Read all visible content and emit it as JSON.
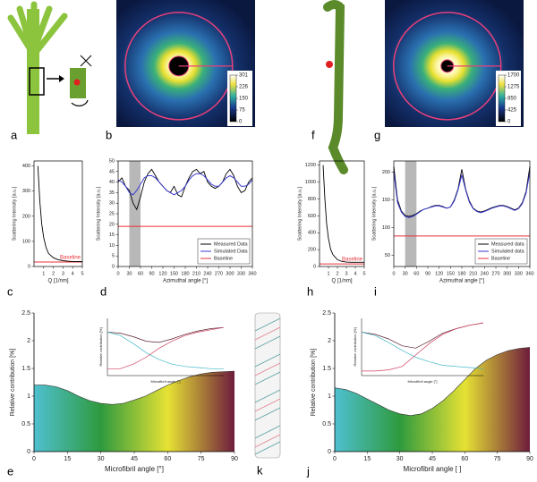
{
  "illustrations": [
    {
      "panel": "a"
    },
    {
      "panel": "f"
    },
    {
      "panel": "k"
    }
  ],
  "images": [
    {
      "panel": "b",
      "colorbar_lim": [
        0,
        301
      ],
      "colorbar_ticks": [
        0,
        75,
        150,
        226,
        301
      ]
    },
    {
      "panel": "g",
      "colorbar_lim": [
        0,
        1700
      ],
      "colorbar_ticks": [
        0,
        425,
        850,
        1275,
        1700
      ]
    }
  ],
  "chart_data": [
    {
      "type": "line",
      "panel": "c",
      "ylabel": "Scattering Intensity [a.u.]",
      "xlabel": "Q [1/nm]",
      "x": [
        0.4,
        0.6,
        0.8,
        1,
        1.25,
        1.5,
        2,
        2.5,
        3,
        3.5,
        4,
        4.5,
        5
      ],
      "series": [
        {
          "color": "#000000",
          "values": [
            400,
            260,
            170,
            115,
            75,
            52,
            35,
            27,
            23,
            21,
            20,
            20,
            20
          ]
        }
      ],
      "baseline": {
        "name": "Baseline",
        "value": 18,
        "color": "#e8303a"
      },
      "xlim": [
        0,
        5
      ],
      "xticks": [
        1,
        2,
        3,
        4,
        5
      ],
      "ylim": [
        0,
        420
      ],
      "yticks": [
        0,
        100,
        200,
        300,
        400
      ]
    },
    {
      "type": "line",
      "panel": "d",
      "ylabel": "Scattering Intensity [a.u.]",
      "xlabel": "Azimuthal angle [°]",
      "x": [
        0,
        10,
        20,
        30,
        40,
        50,
        60,
        70,
        80,
        90,
        100,
        110,
        120,
        130,
        140,
        150,
        160,
        170,
        180,
        190,
        200,
        210,
        220,
        230,
        240,
        250,
        260,
        270,
        280,
        290,
        300,
        310,
        320,
        330,
        340,
        350,
        360
      ],
      "series": [
        {
          "name": "Measured Data",
          "color": "#000000",
          "values": [
            40,
            42,
            38,
            36,
            30,
            27,
            33,
            40,
            44,
            46,
            43,
            40,
            38,
            36,
            35,
            38,
            34,
            33,
            38,
            42,
            45,
            46,
            44,
            45,
            40,
            38,
            37,
            38,
            40,
            44,
            46,
            43,
            38,
            35,
            36,
            40,
            42
          ]
        },
        {
          "name": "Simulated Data",
          "color": "#3a3ad0",
          "values": [
            41,
            40,
            38,
            35,
            34,
            36,
            39,
            42,
            43,
            43,
            42,
            40,
            38,
            36,
            35,
            34,
            35,
            36,
            38,
            41,
            43,
            44,
            44,
            43,
            41,
            39,
            38,
            38,
            40,
            42,
            43,
            42,
            40,
            38,
            38,
            39,
            41
          ]
        }
      ],
      "baseline": {
        "name": "Baseline",
        "value": 19,
        "color": "#e8303a"
      },
      "shade": [
        30,
        60
      ],
      "legend": "lower right",
      "xlim": [
        0,
        360
      ],
      "xticks": [
        0,
        30,
        60,
        90,
        120,
        150,
        180,
        210,
        240,
        270,
        300,
        330,
        360
      ],
      "ylim": [
        0,
        50
      ],
      "yticks": [
        0,
        5,
        10,
        15,
        20,
        25,
        30,
        35,
        40,
        45,
        50
      ]
    },
    {
      "type": "line",
      "panel": "h",
      "ylabel": "Scattering Intensity [a.u.]",
      "xlabel": "Q [1/nm]",
      "x": [
        0.4,
        0.6,
        0.8,
        1,
        1.25,
        1.5,
        2,
        2.5,
        3,
        3.5,
        4,
        4.5,
        5
      ],
      "series": [
        {
          "color": "#000000",
          "values": [
            1200,
            800,
            500,
            330,
            200,
            140,
            80,
            60,
            52,
            50,
            50,
            50,
            50
          ]
        }
      ],
      "baseline": {
        "name": "Baseline",
        "value": 30,
        "color": "#e8303a"
      },
      "xlim": [
        0,
        5
      ],
      "xticks": [
        1,
        2,
        3,
        4,
        5
      ],
      "ylim": [
        0,
        1250
      ],
      "yticks": [
        0,
        200,
        400,
        600,
        800,
        1000,
        1200
      ]
    },
    {
      "type": "line",
      "panel": "i",
      "ylabel": "Scattering Intensity [a.u.]",
      "xlabel": "Azimuthal angle [°]",
      "x": [
        0,
        10,
        20,
        30,
        40,
        50,
        60,
        70,
        80,
        90,
        100,
        110,
        120,
        130,
        140,
        150,
        160,
        170,
        180,
        190,
        200,
        210,
        220,
        230,
        240,
        250,
        260,
        270,
        280,
        290,
        300,
        310,
        320,
        330,
        340,
        350,
        360
      ],
      "series": [
        {
          "name": "Measured data",
          "color": "#000000",
          "values": [
            210,
            150,
            130,
            122,
            120,
            122,
            125,
            130,
            133,
            135,
            138,
            140,
            140,
            138,
            135,
            137,
            150,
            170,
            205,
            170,
            148,
            135,
            130,
            128,
            130,
            133,
            136,
            138,
            140,
            140,
            138,
            135,
            132,
            135,
            145,
            165,
            210
          ]
        },
        {
          "name": "Simulated data",
          "color": "#3a3ad0",
          "values": [
            200,
            145,
            128,
            120,
            118,
            120,
            124,
            129,
            133,
            135,
            137,
            139,
            139,
            137,
            135,
            137,
            148,
            168,
            195,
            168,
            146,
            134,
            129,
            127,
            129,
            132,
            135,
            137,
            139,
            139,
            137,
            134,
            131,
            134,
            143,
            162,
            200
          ]
        }
      ],
      "baseline": {
        "name": "Baseline",
        "value": 85,
        "color": "#e8303a"
      },
      "shade": [
        30,
        60
      ],
      "legend": "lower right",
      "xlim": [
        0,
        360
      ],
      "xticks": [
        0,
        30,
        60,
        90,
        120,
        150,
        180,
        210,
        240,
        270,
        300,
        330,
        360
      ],
      "ylim": [
        30,
        220
      ],
      "yticks": [
        50,
        100,
        150,
        200
      ]
    },
    {
      "type": "area",
      "panel": "e",
      "ylabel": "Relative contribution [%]",
      "xlabel": "Microfibril angle [°]",
      "x": [
        0,
        5,
        10,
        15,
        20,
        25,
        30,
        35,
        40,
        45,
        50,
        55,
        60,
        65,
        70,
        75,
        80,
        85,
        90
      ],
      "values": [
        1.2,
        1.2,
        1.17,
        1.1,
        1.0,
        0.92,
        0.87,
        0.85,
        0.87,
        0.93,
        1.0,
        1.1,
        1.2,
        1.28,
        1.35,
        1.4,
        1.43,
        1.44,
        1.45
      ],
      "fill_colors": [
        "#4fc0d0",
        "#2e9a3e",
        "#e6e234",
        "#6e1c3c"
      ],
      "xlim": [
        0,
        90
      ],
      "xticks": [
        0,
        15,
        30,
        45,
        60,
        75,
        90
      ],
      "ylim": [
        0,
        2.5
      ],
      "yticks": [
        0,
        0.5,
        1,
        1.5,
        2,
        2.5
      ],
      "inset": {
        "ylabel": "Relative contribution [%]",
        "xlabel": "Microfibril angle [°]",
        "xlim": [
          0,
          90
        ],
        "ylim": [
          0,
          2.5
        ],
        "x": [
          0,
          10,
          20,
          30,
          40,
          50,
          60,
          70,
          80,
          90
        ],
        "series": [
          {
            "color": "#5a2030",
            "values": [
              1.9,
              1.85,
              1.7,
              1.5,
              1.45,
              1.6,
              1.8,
              1.95,
              2.05,
              2.1
            ]
          },
          {
            "color": "#40b8c8",
            "values": [
              1.9,
              1.75,
              1.4,
              1.0,
              0.7,
              0.5,
              0.4,
              0.35,
              0.3,
              0.3
            ]
          },
          {
            "color": "#d04060",
            "values": [
              0.3,
              0.3,
              0.5,
              0.8,
              1.2,
              1.5,
              1.75,
              1.9,
              2.0,
              2.1
            ]
          }
        ]
      }
    },
    {
      "type": "area",
      "panel": "j",
      "ylabel": "Relative contribution [%]",
      "xlabel": "Microfibril angle [ ]",
      "x": [
        0,
        5,
        10,
        15,
        20,
        25,
        30,
        35,
        40,
        45,
        50,
        55,
        60,
        65,
        70,
        75,
        80,
        85,
        90
      ],
      "values": [
        1.15,
        1.12,
        1.05,
        0.95,
        0.85,
        0.75,
        0.68,
        0.65,
        0.68,
        0.78,
        0.92,
        1.1,
        1.3,
        1.5,
        1.65,
        1.75,
        1.82,
        1.86,
        1.88
      ],
      "fill_colors": [
        "#4fc0d0",
        "#2e9a3e",
        "#e6e234",
        "#6e1c3c"
      ],
      "xlim": [
        0,
        90
      ],
      "xticks": [
        0,
        15,
        30,
        45,
        60,
        75,
        90
      ],
      "ylim": [
        0,
        2.5
      ],
      "yticks": [
        0,
        0.5,
        1,
        1.5,
        2,
        2.5
      ],
      "inset": {
        "ylabel": "Relative contribution [%]",
        "xlabel": "Microfibril angle [°]",
        "xlim": [
          0,
          90
        ],
        "ylim": [
          0,
          2.5
        ],
        "x": [
          0,
          10,
          20,
          30,
          40,
          50,
          60,
          70,
          80,
          90
        ],
        "series": [
          {
            "color": "#5a2030",
            "values": [
              1.9,
              1.8,
              1.6,
              1.3,
              1.2,
              1.5,
              1.85,
              2.05,
              2.2,
              2.3
            ]
          },
          {
            "color": "#40b8c8",
            "values": [
              1.9,
              1.75,
              1.45,
              1.1,
              0.8,
              0.6,
              0.45,
              0.4,
              0.35,
              0.3
            ]
          },
          {
            "color": "#d04060",
            "values": [
              0.2,
              0.2,
              0.25,
              0.4,
              0.9,
              1.4,
              1.8,
              2.05,
              2.2,
              2.3
            ]
          }
        ]
      }
    }
  ]
}
